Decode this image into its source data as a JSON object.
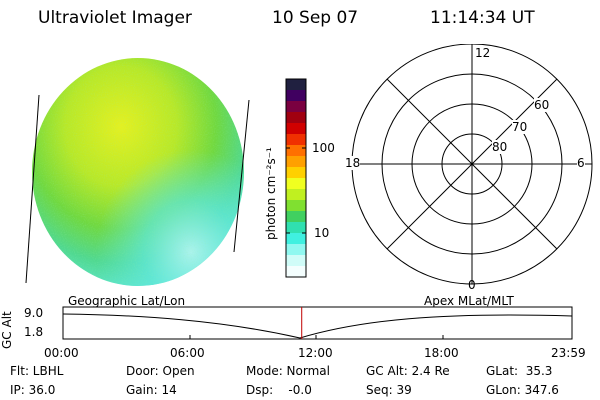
{
  "header": {
    "instrument": "Ultraviolet Imager",
    "date": "10 Sep 07",
    "time": "11:14:34 UT"
  },
  "colorbar": {
    "unit_label": "photon cm⁻²s⁻¹",
    "tick_100": "100",
    "tick_10": "10",
    "colors": [
      "#202040",
      "#400060",
      "#7a0040",
      "#a00010",
      "#d00000",
      "#f03000",
      "#ff7000",
      "#ffa000",
      "#ffd000",
      "#f0ff20",
      "#c0f020",
      "#80e030",
      "#40d060",
      "#30e0b0",
      "#40f0e0",
      "#90f8f0",
      "#d0fcf8",
      "#f4fefe"
    ]
  },
  "polar_plot": {
    "labels": {
      "top": "12",
      "bottom": "0",
      "left": "18",
      "right": "6",
      "lat60": "60",
      "lat70": "70",
      "lat80": "80"
    }
  },
  "altitude_plot": {
    "ylabel": "GC Alt",
    "ytick_top": "9.0",
    "ytick_bottom": "1.8",
    "left_title": "Geographic Lat/Lon",
    "right_title": "Apex MLat/MLT",
    "xticks": [
      "00:00",
      "06:00",
      "12:00",
      "18:00",
      "23:59"
    ],
    "current_time_fraction": 0.469
  },
  "info": {
    "flt": "Flt: LBHL",
    "ip": "IP: 36.0",
    "door": "Door: Open",
    "gain": "Gain: 14",
    "mode": "Mode: Normal",
    "dsp": "Dsp:    -0.0",
    "gcalt": "GC Alt: 2.4 Re",
    "seq": "Seq: 39",
    "glat": "GLat:  35.3",
    "glon": "GLon: 347.6"
  }
}
